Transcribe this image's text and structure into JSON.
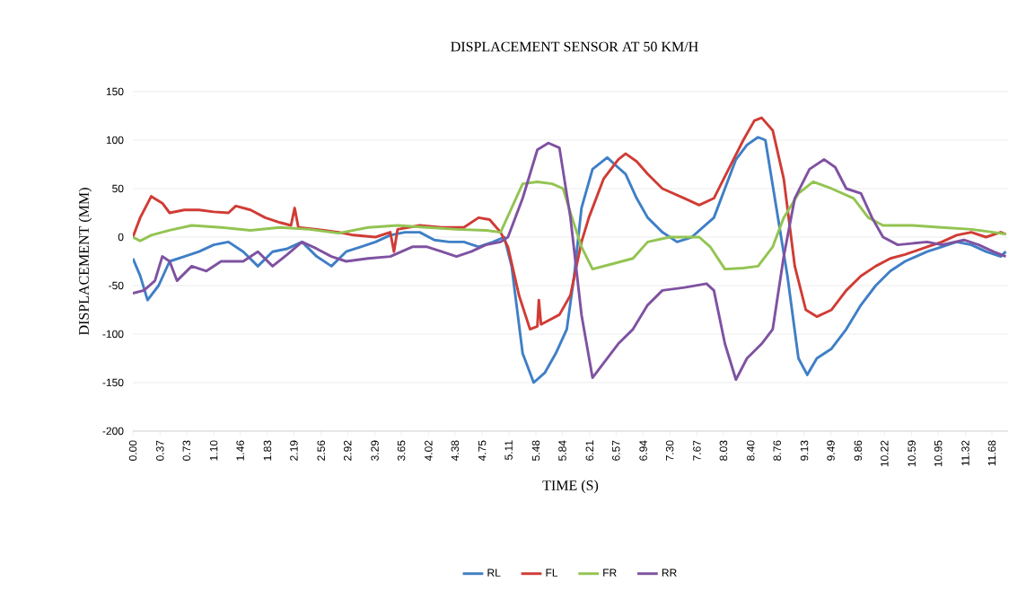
{
  "chart_data": {
    "type": "line",
    "title": "DISPLACEMENT  SENSOR AT 50 KM/H",
    "xlabel": "TIME (S)",
    "ylabel": "DISPLACEMENT (MM)",
    "xlim": [
      0,
      11.9
    ],
    "ylim": [
      -200,
      150
    ],
    "xticks": [
      {
        "value": 0,
        "label": "0.00"
      },
      {
        "value": 0.37,
        "label": "0.37"
      },
      {
        "value": 0.73,
        "label": "0.73"
      },
      {
        "value": 1.1,
        "label": "1.10"
      },
      {
        "value": 1.46,
        "label": "1.46"
      },
      {
        "value": 1.83,
        "label": "1.83"
      },
      {
        "value": 2.19,
        "label": "2.19"
      },
      {
        "value": 2.56,
        "label": "2.56"
      },
      {
        "value": 2.92,
        "label": "2.92"
      },
      {
        "value": 3.29,
        "label": "3.29"
      },
      {
        "value": 3.65,
        "label": "3.65"
      },
      {
        "value": 4.02,
        "label": "4.02"
      },
      {
        "value": 4.38,
        "label": "4.38"
      },
      {
        "value": 4.75,
        "label": "4.75"
      },
      {
        "value": 5.11,
        "label": "5.11"
      },
      {
        "value": 5.48,
        "label": "5.48"
      },
      {
        "value": 5.84,
        "label": "5.84"
      },
      {
        "value": 6.21,
        "label": "6.21"
      },
      {
        "value": 6.57,
        "label": "6.57"
      },
      {
        "value": 6.94,
        "label": "6.94"
      },
      {
        "value": 7.3,
        "label": "7.30"
      },
      {
        "value": 7.67,
        "label": "7.67"
      },
      {
        "value": 8.03,
        "label": "8.03"
      },
      {
        "value": 8.4,
        "label": "8.40"
      },
      {
        "value": 8.76,
        "label": "8.76"
      },
      {
        "value": 9.13,
        "label": "9.13"
      },
      {
        "value": 9.49,
        "label": "9.49"
      },
      {
        "value": 9.86,
        "label": "9.86"
      },
      {
        "value": 10.22,
        "label": "10.22"
      },
      {
        "value": 10.59,
        "label": "10.59"
      },
      {
        "value": 10.95,
        "label": "10.95"
      },
      {
        "value": 11.32,
        "label": "11.32"
      },
      {
        "value": 11.68,
        "label": "11.68"
      }
    ],
    "yticks": [
      -200,
      -150,
      -100,
      -50,
      0,
      50,
      100,
      150
    ],
    "grid": "y",
    "legend": "bottom",
    "line_style": "solid",
    "series": [
      {
        "name": "RL",
        "color": "#3f7fc6",
        "x": [
          0,
          0.1,
          0.2,
          0.35,
          0.5,
          0.7,
          0.9,
          1.1,
          1.3,
          1.5,
          1.7,
          1.9,
          2.1,
          2.3,
          2.5,
          2.7,
          2.9,
          3.1,
          3.3,
          3.5,
          3.7,
          3.9,
          4.1,
          4.3,
          4.5,
          4.7,
          4.9,
          5.05,
          5.15,
          5.3,
          5.45,
          5.6,
          5.75,
          5.9,
          6.0,
          6.1,
          6.25,
          6.45,
          6.55,
          6.7,
          6.85,
          7.0,
          7.2,
          7.4,
          7.6,
          7.75,
          7.9,
          8.05,
          8.2,
          8.35,
          8.5,
          8.6,
          8.75,
          8.9,
          9.05,
          9.17,
          9.3,
          9.5,
          9.7,
          9.9,
          10.1,
          10.3,
          10.5,
          10.8,
          11.0,
          11.2,
          11.4,
          11.6,
          11.8,
          11.87
        ],
        "values": [
          -22,
          -40,
          -65,
          -50,
          -25,
          -20,
          -15,
          -8,
          -5,
          -15,
          -30,
          -15,
          -12,
          -5,
          -20,
          -30,
          -15,
          -10,
          -5,
          2,
          5,
          5,
          -3,
          -5,
          -5,
          -10,
          -5,
          0,
          -30,
          -120,
          -150,
          -140,
          -120,
          -95,
          -40,
          30,
          70,
          82,
          75,
          65,
          40,
          20,
          5,
          -5,
          0,
          10,
          20,
          50,
          80,
          95,
          103,
          100,
          30,
          -40,
          -125,
          -142,
          -125,
          -115,
          -95,
          -70,
          -50,
          -35,
          -25,
          -15,
          -10,
          -5,
          -8,
          -15,
          -20,
          -15
        ]
      },
      {
        "name": "FL",
        "color": "#d03c35",
        "x": [
          0,
          0.1,
          0.25,
          0.4,
          0.5,
          0.7,
          0.9,
          1.1,
          1.3,
          1.4,
          1.6,
          1.8,
          2.0,
          2.15,
          2.2,
          2.25,
          2.5,
          2.8,
          3.0,
          3.3,
          3.5,
          3.55,
          3.6,
          3.9,
          4.2,
          4.5,
          4.7,
          4.85,
          5.0,
          5.1,
          5.25,
          5.4,
          5.5,
          5.52,
          5.55,
          5.8,
          5.95,
          6.1,
          6.2,
          6.4,
          6.6,
          6.7,
          6.85,
          7.0,
          7.2,
          7.5,
          7.7,
          7.9,
          8.1,
          8.3,
          8.45,
          8.55,
          8.7,
          8.85,
          9.0,
          9.15,
          9.3,
          9.5,
          9.7,
          9.9,
          10.1,
          10.3,
          10.5,
          10.8,
          11.0,
          11.2,
          11.4,
          11.6,
          11.8,
          11.87
        ],
        "values": [
          0,
          20,
          42,
          35,
          25,
          28,
          28,
          26,
          25,
          32,
          28,
          20,
          15,
          12,
          30,
          10,
          8,
          5,
          2,
          0,
          5,
          -15,
          8,
          12,
          10,
          10,
          20,
          18,
          5,
          -10,
          -60,
          -95,
          -92,
          -65,
          -90,
          -80,
          -60,
          -5,
          20,
          60,
          80,
          86,
          78,
          65,
          50,
          40,
          33,
          40,
          70,
          100,
          120,
          123,
          110,
          60,
          -30,
          -75,
          -82,
          -75,
          -55,
          -40,
          -30,
          -22,
          -18,
          -10,
          -5,
          2,
          5,
          0,
          5,
          3
        ]
      },
      {
        "name": "FR",
        "color": "#93c452",
        "x": [
          0,
          0.1,
          0.25,
          0.5,
          0.8,
          1.2,
          1.6,
          2.0,
          2.4,
          2.8,
          3.2,
          3.6,
          4.0,
          4.4,
          4.8,
          5.0,
          5.15,
          5.3,
          5.5,
          5.7,
          5.85,
          5.95,
          6.1,
          6.25,
          6.5,
          6.8,
          7.0,
          7.3,
          7.7,
          7.85,
          8.05,
          8.3,
          8.5,
          8.7,
          8.85,
          9.05,
          9.25,
          9.5,
          9.8,
          10.0,
          10.2,
          10.6,
          11.0,
          11.4,
          11.7,
          11.87
        ],
        "values": [
          0,
          -4,
          2,
          7,
          12,
          10,
          7,
          10,
          8,
          4,
          10,
          12,
          10,
          8,
          7,
          5,
          30,
          55,
          57,
          55,
          50,
          25,
          -10,
          -33,
          -28,
          -22,
          -5,
          0,
          0,
          -10,
          -33,
          -32,
          -30,
          -10,
          20,
          45,
          57,
          50,
          40,
          20,
          12,
          12,
          10,
          8,
          5,
          3
        ]
      },
      {
        "name": "RR",
        "color": "#7f52a1",
        "x": [
          0,
          0.15,
          0.3,
          0.4,
          0.5,
          0.6,
          0.8,
          1.0,
          1.2,
          1.5,
          1.7,
          1.9,
          2.1,
          2.3,
          2.5,
          2.7,
          2.9,
          3.2,
          3.5,
          3.8,
          4.0,
          4.2,
          4.4,
          4.6,
          4.8,
          5.0,
          5.1,
          5.3,
          5.5,
          5.65,
          5.8,
          5.95,
          6.1,
          6.25,
          6.4,
          6.6,
          6.8,
          7.0,
          7.2,
          7.5,
          7.8,
          7.9,
          8.05,
          8.2,
          8.35,
          8.55,
          8.7,
          8.85,
          9.0,
          9.2,
          9.4,
          9.55,
          9.7,
          9.9,
          10.05,
          10.2,
          10.4,
          10.8,
          11.0,
          11.3,
          11.5,
          11.7,
          11.87
        ],
        "values": [
          -58,
          -55,
          -45,
          -20,
          -25,
          -45,
          -30,
          -35,
          -25,
          -25,
          -15,
          -30,
          -18,
          -5,
          -12,
          -20,
          -25,
          -22,
          -20,
          -10,
          -10,
          -15,
          -20,
          -15,
          -8,
          -5,
          0,
          40,
          90,
          97,
          92,
          20,
          -80,
          -145,
          -130,
          -110,
          -95,
          -70,
          -55,
          -52,
          -48,
          -55,
          -110,
          -147,
          -125,
          -110,
          -95,
          -20,
          40,
          70,
          80,
          72,
          50,
          45,
          20,
          0,
          -8,
          -5,
          -8,
          -3,
          -8,
          -15,
          -20
        ]
      }
    ]
  }
}
